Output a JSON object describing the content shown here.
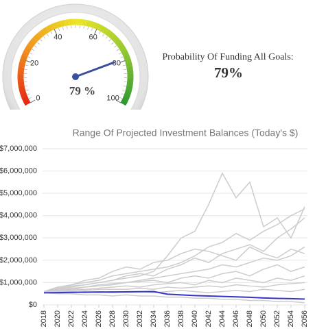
{
  "chart_data": [
    {
      "type": "gauge",
      "value": 79,
      "value_label": "79 %",
      "lim": [
        0,
        100
      ],
      "ticks": [
        0,
        20,
        40,
        60,
        80,
        100
      ],
      "needle_color": "#3b4ea0",
      "summary": {
        "label": "Probability Of Funding All Goals:",
        "value": 79,
        "value_label": "79%"
      }
    },
    {
      "type": "line",
      "title": "Range Of Projected Investment Balances (Today's $)",
      "x": [
        2018,
        2020,
        2022,
        2024,
        2026,
        2028,
        2030,
        2032,
        2034,
        2036,
        2038,
        2040,
        2042,
        2044,
        2046,
        2048,
        2050,
        2052,
        2054,
        2056
      ],
      "xlim": [
        2018,
        2056
      ],
      "xticks": [
        2018,
        2020,
        2022,
        2024,
        2026,
        2028,
        2030,
        2032,
        2034,
        2036,
        2038,
        2040,
        2042,
        2044,
        2046,
        2048,
        2050,
        2052,
        2054,
        2056
      ],
      "ylim": [
        0,
        7000000
      ],
      "yticks": [
        {
          "value": 0,
          "label": "$0"
        },
        {
          "value": 1000000,
          "label": "$1,000,000"
        },
        {
          "value": 2000000,
          "label": "$2,000,000"
        },
        {
          "value": 3000000,
          "label": "$3,000,000"
        },
        {
          "value": 4000000,
          "label": "$4,000,000"
        },
        {
          "value": 5000000,
          "label": "$5,000,000"
        },
        {
          "value": 6000000,
          "label": "$6,000,000"
        },
        {
          "value": 7000000,
          "label": "$7,000,000"
        }
      ],
      "grid": true,
      "series": [
        {
          "color": "#cccccc",
          "values": [
            600000,
            750000,
            850000,
            900000,
            1000000,
            1100000,
            1200000,
            1300000,
            1500000,
            2200000,
            3000000,
            3300000,
            4500000,
            5900000,
            4800000,
            5500000,
            3500000,
            3900000,
            3000000,
            4400000
          ]
        },
        {
          "color": "#cccccc",
          "values": [
            600000,
            800000,
            900000,
            1000000,
            1100000,
            1300000,
            1400000,
            1500000,
            1600000,
            1700000,
            1900000,
            2200000,
            2600000,
            2800000,
            3200000,
            2900000,
            3300000,
            3600000,
            4000000,
            4300000
          ]
        },
        {
          "color": "#cccccc",
          "values": [
            600000,
            700000,
            800000,
            900000,
            1000000,
            1100000,
            1300000,
            1400000,
            1300000,
            1600000,
            1800000,
            2100000,
            1900000,
            2300000,
            2500000,
            2700000,
            2400000,
            3000000,
            3400000,
            3900000
          ]
        },
        {
          "color": "#cccccc",
          "values": [
            600000,
            700000,
            900000,
            1100000,
            1200000,
            1500000,
            1700000,
            1600000,
            1900000,
            2000000,
            2300000,
            2500000,
            2400000,
            2200000,
            2000000,
            2600000,
            2300000,
            2100000,
            2500000,
            2300000
          ]
        },
        {
          "color": "#cccccc",
          "values": [
            600000,
            650000,
            700000,
            800000,
            850000,
            900000,
            1000000,
            1100000,
            1200000,
            1300000,
            1400000,
            1500000,
            1600000,
            1800000,
            1700000,
            1900000,
            2100000,
            2000000,
            2200000,
            2600000
          ]
        },
        {
          "color": "#cccccc",
          "values": [
            600000,
            700000,
            750000,
            800000,
            900000,
            950000,
            1000000,
            1050000,
            1100000,
            1000000,
            1200000,
            1300000,
            1200000,
            1400000,
            1500000,
            1300000,
            1600000,
            1800000,
            1500000,
            1700000
          ]
        },
        {
          "color": "#cccccc",
          "values": [
            600000,
            650000,
            700000,
            700000,
            750000,
            800000,
            850000,
            800000,
            900000,
            950000,
            1000000,
            900000,
            1100000,
            1000000,
            1200000,
            1100000,
            1000000,
            1200000,
            1100000,
            1300000
          ]
        },
        {
          "color": "#cccccc",
          "values": [
            600000,
            600000,
            650000,
            650000,
            700000,
            700000,
            700000,
            750000,
            700000,
            800000,
            750000,
            800000,
            850000,
            800000,
            900000,
            850000,
            800000,
            900000,
            950000,
            1000000
          ]
        },
        {
          "color": "#cccccc",
          "values": [
            550000,
            500000,
            500000,
            450000,
            450000,
            400000,
            450000,
            400000,
            400000,
            350000,
            350000,
            300000,
            300000,
            250000,
            250000,
            200000,
            200000,
            150000,
            150000,
            100000
          ]
        },
        {
          "color": "#cccccc",
          "values": [
            600000,
            600000,
            600000,
            550000,
            600000,
            550000,
            600000,
            600000,
            550000,
            600000,
            650000,
            600000,
            550000,
            600000,
            650000,
            600000,
            700000,
            650000,
            600000,
            700000
          ]
        },
        {
          "color": "#3333cc",
          "values": [
            540000,
            550000,
            560000,
            570000,
            575000,
            580000,
            585000,
            590000,
            600000,
            480000,
            450000,
            420000,
            400000,
            380000,
            360000,
            340000,
            310000,
            290000,
            280000,
            260000
          ]
        }
      ]
    }
  ]
}
